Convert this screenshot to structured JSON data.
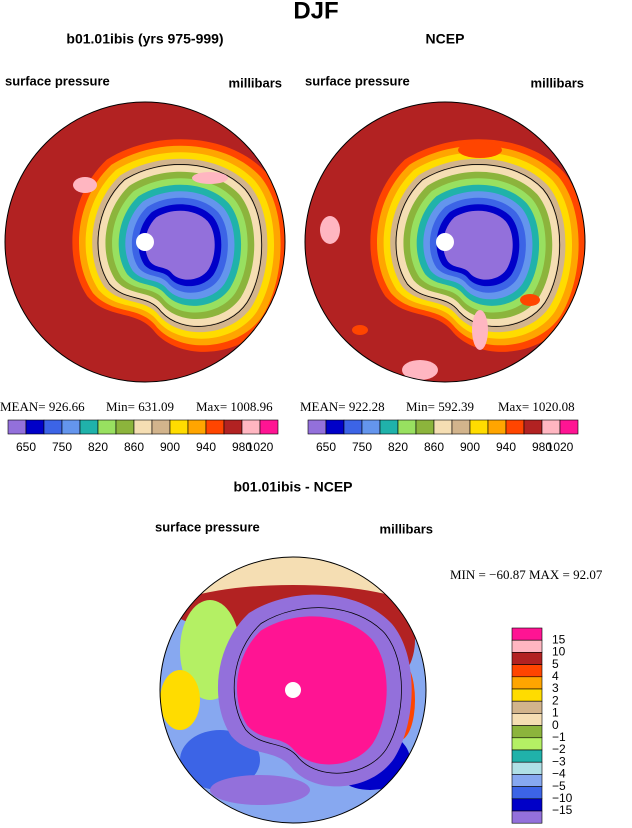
{
  "title": "DJF",
  "panels": [
    {
      "title": "b01.01ibis (yrs 975-999)",
      "left_label": "surface pressure",
      "right_label": "millibars",
      "stats": [
        "MEAN=  926.66",
        "Min=  631.09",
        "Max=  1008.96"
      ]
    },
    {
      "title": "NCEP",
      "left_label": "surface pressure",
      "right_label": "millibars",
      "stats": [
        "MEAN=  922.28",
        "Min=  592.39",
        "Max=  1020.08"
      ]
    }
  ],
  "colorbar": {
    "labels": [
      "650",
      "750",
      "820",
      "860",
      "900",
      "940",
      "980",
      "1020"
    ],
    "colors": [
      "#9370db",
      "#0000c8",
      "#3c64e6",
      "#6495ed",
      "#20b2aa",
      "#98e060",
      "#8cb43c",
      "#f5deb3",
      "#d2b48c",
      "#ffdc00",
      "#ffa500",
      "#ff4500",
      "#b22222",
      "#ffb6c1",
      "#ff1493"
    ]
  },
  "difference": {
    "title": "b01.01ibis - NCEP",
    "left_label": "surface pressure",
    "right_label": "millibars",
    "stats": "MIN = −60.87 MAX =  92.07",
    "labels": [
      "15",
      "10",
      "5",
      "4",
      "3",
      "2",
      "1",
      "0",
      "−1",
      "−2",
      "−3",
      "−4",
      "−5",
      "−10",
      "−15"
    ],
    "colors": [
      "#ff1493",
      "#ffb6c1",
      "#b22222",
      "#ff4500",
      "#ffa500",
      "#ffdc00",
      "#d2b48c",
      "#f5deb3",
      "#8cb43c",
      "#b4f064",
      "#20b2aa",
      "#b0e0e6",
      "#87a8f0",
      "#3c64e6",
      "#0000c8",
      "#9370db"
    ]
  }
}
